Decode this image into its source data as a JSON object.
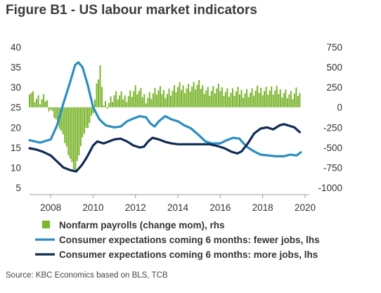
{
  "title": "Figure B1 - US labour market indicators",
  "source": "Source: KBC Economics based on BLS, TCB",
  "colors": {
    "payrolls": "#7bb52d",
    "fewer_jobs": "#2a8ec0",
    "more_jobs": "#0f2a55",
    "text": "#333333"
  },
  "chart_data": {
    "type": "bar+line",
    "title": "Figure B1 - US labour market indicators",
    "x_range": [
      2007.0,
      2020.2
    ],
    "x_ticks": [
      "2008",
      "2010",
      "2012",
      "2014",
      "2016",
      "2018",
      "2020"
    ],
    "ylim_left": [
      5,
      40
    ],
    "y_ticks_left": [
      "5",
      "10",
      "15",
      "20",
      "25",
      "30",
      "35",
      "40"
    ],
    "ylim_right": [
      -1000,
      750
    ],
    "y_ticks_right": [
      "-1000",
      "-750",
      "-500",
      "-250",
      "0",
      "250",
      "500",
      "750"
    ],
    "grid": false,
    "legend": [
      {
        "label": "Nonfarm payrolls (change mom), rhs",
        "marker": "square",
        "color": "#7bb52d"
      },
      {
        "label": "Consumer expectations coming 6 months: fewer jobs, lhs",
        "marker": "line",
        "color": "#2a8ec0"
      },
      {
        "label": "Consumer expectations coming 6 months: more jobs, lhs",
        "marker": "line",
        "color": "#0f2a55"
      }
    ],
    "series": [
      {
        "name": "Nonfarm payrolls (change mom), rhs",
        "axis": "right",
        "kind": "bar",
        "points": [
          [
            2007.0,
            230
          ],
          [
            2007.25,
            120
          ],
          [
            2007.5,
            80
          ],
          [
            2007.75,
            100
          ],
          [
            2008.0,
            -20
          ],
          [
            2008.25,
            -150
          ],
          [
            2008.5,
            -300
          ],
          [
            2008.75,
            -500
          ],
          [
            2009.0,
            -700
          ],
          [
            2009.17,
            -800
          ],
          [
            2009.35,
            -560
          ],
          [
            2009.6,
            -300
          ],
          [
            2009.85,
            -180
          ],
          [
            2010.0,
            -50
          ],
          [
            2010.2,
            300
          ],
          [
            2010.33,
            530
          ],
          [
            2010.45,
            50
          ],
          [
            2010.7,
            50
          ],
          [
            2011.0,
            150
          ],
          [
            2011.5,
            120
          ],
          [
            2012.0,
            220
          ],
          [
            2012.5,
            120
          ],
          [
            2013.0,
            200
          ],
          [
            2013.5,
            180
          ],
          [
            2014.0,
            240
          ],
          [
            2014.5,
            250
          ],
          [
            2015.0,
            270
          ],
          [
            2015.5,
            200
          ],
          [
            2016.0,
            230
          ],
          [
            2016.5,
            180
          ],
          [
            2017.0,
            190
          ],
          [
            2017.5,
            180
          ],
          [
            2018.0,
            220
          ],
          [
            2018.5,
            200
          ],
          [
            2019.0,
            190
          ],
          [
            2019.4,
            140
          ],
          [
            2019.6,
            180
          ],
          [
            2019.8,
            140
          ]
        ]
      },
      {
        "name": "Consumer expectations coming 6 months: fewer jobs, lhs",
        "axis": "left",
        "kind": "line",
        "points": [
          [
            2007.0,
            16.8
          ],
          [
            2007.5,
            16.2
          ],
          [
            2008.0,
            17.0
          ],
          [
            2008.3,
            20.5
          ],
          [
            2008.6,
            26.0
          ],
          [
            2008.9,
            31.0
          ],
          [
            2009.15,
            35.5
          ],
          [
            2009.3,
            36.2
          ],
          [
            2009.5,
            35.0
          ],
          [
            2009.75,
            30.5
          ],
          [
            2010.0,
            25.0
          ],
          [
            2010.3,
            22.0
          ],
          [
            2010.6,
            20.5
          ],
          [
            2011.0,
            20.0
          ],
          [
            2011.3,
            20.2
          ],
          [
            2011.6,
            21.5
          ],
          [
            2011.9,
            22.2
          ],
          [
            2012.2,
            22.8
          ],
          [
            2012.5,
            22.5
          ],
          [
            2012.7,
            21.0
          ],
          [
            2012.9,
            20.2
          ],
          [
            2013.1,
            21.5
          ],
          [
            2013.4,
            22.8
          ],
          [
            2013.7,
            22.0
          ],
          [
            2014.0,
            21.5
          ],
          [
            2014.3,
            20.5
          ],
          [
            2014.6,
            19.8
          ],
          [
            2015.0,
            18.0
          ],
          [
            2015.3,
            16.5
          ],
          [
            2015.6,
            16.0
          ],
          [
            2016.0,
            16.0
          ],
          [
            2016.3,
            16.8
          ],
          [
            2016.6,
            17.4
          ],
          [
            2016.9,
            17.2
          ],
          [
            2017.1,
            16.0
          ],
          [
            2017.3,
            15.0
          ],
          [
            2017.6,
            14.0
          ],
          [
            2017.9,
            13.2
          ],
          [
            2018.3,
            13.0
          ],
          [
            2018.6,
            12.8
          ],
          [
            2019.0,
            12.8
          ],
          [
            2019.3,
            13.2
          ],
          [
            2019.6,
            13.0
          ],
          [
            2019.8,
            13.8
          ]
        ]
      },
      {
        "name": "Consumer expectations coming 6 months: more jobs, lhs",
        "axis": "left",
        "kind": "line",
        "points": [
          [
            2007.0,
            14.8
          ],
          [
            2007.3,
            14.5
          ],
          [
            2007.6,
            14.0
          ],
          [
            2008.0,
            13.0
          ],
          [
            2008.3,
            11.5
          ],
          [
            2008.6,
            10.0
          ],
          [
            2008.9,
            9.4
          ],
          [
            2009.2,
            9.0
          ],
          [
            2009.45,
            10.5
          ],
          [
            2009.7,
            12.5
          ],
          [
            2010.0,
            15.5
          ],
          [
            2010.2,
            16.5
          ],
          [
            2010.5,
            16.0
          ],
          [
            2010.75,
            16.5
          ],
          [
            2011.0,
            17.0
          ],
          [
            2011.3,
            17.2
          ],
          [
            2011.6,
            16.5
          ],
          [
            2011.9,
            15.5
          ],
          [
            2012.2,
            15.0
          ],
          [
            2012.4,
            15.2
          ],
          [
            2012.6,
            16.5
          ],
          [
            2012.8,
            17.4
          ],
          [
            2013.1,
            17.0
          ],
          [
            2013.4,
            16.4
          ],
          [
            2013.7,
            16.0
          ],
          [
            2014.0,
            15.8
          ],
          [
            2014.5,
            15.8
          ],
          [
            2015.0,
            15.8
          ],
          [
            2015.5,
            15.8
          ],
          [
            2015.9,
            15.3
          ],
          [
            2016.2,
            14.8
          ],
          [
            2016.5,
            14.0
          ],
          [
            2016.8,
            13.5
          ],
          [
            2017.0,
            14.0
          ],
          [
            2017.3,
            16.0
          ],
          [
            2017.6,
            18.5
          ],
          [
            2017.9,
            19.7
          ],
          [
            2018.2,
            20.0
          ],
          [
            2018.5,
            19.5
          ],
          [
            2018.8,
            20.5
          ],
          [
            2019.0,
            20.8
          ],
          [
            2019.2,
            20.5
          ],
          [
            2019.5,
            20.0
          ],
          [
            2019.75,
            18.8
          ]
        ]
      }
    ]
  }
}
